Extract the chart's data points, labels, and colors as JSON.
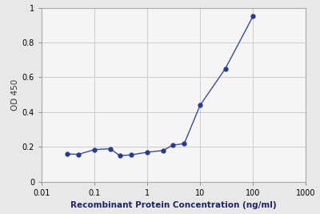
{
  "x": [
    0.03,
    0.05,
    0.1,
    0.2,
    0.3,
    0.5,
    1.0,
    2.0,
    3.0,
    5.0,
    10.0,
    30.0,
    100.0
  ],
  "y": [
    0.16,
    0.158,
    0.185,
    0.19,
    0.15,
    0.155,
    0.17,
    0.18,
    0.21,
    0.22,
    0.44,
    0.65,
    0.95
  ],
  "line_color": "#3a4a9a",
  "marker_color": "#2a3a8a",
  "xlabel": "Recombinant Protein Concentration (ng/ml)",
  "ylabel": "OD 450",
  "xlim_log": [
    0.01,
    1000
  ],
  "ylim": [
    0,
    1
  ],
  "yticks": [
    0,
    0.2,
    0.4,
    0.6,
    0.8,
    1
  ],
  "xticks": [
    0.01,
    0.1,
    1,
    10,
    100,
    1000
  ],
  "xtick_labels": [
    "0.01",
    "0.1",
    "1",
    "10",
    "100",
    "1000"
  ],
  "background_color": "#e8e8e8",
  "plot_bg_color": "#f5f5f5",
  "grid_color": "#cccccc",
  "label_fontsize": 7.5,
  "tick_fontsize": 7
}
